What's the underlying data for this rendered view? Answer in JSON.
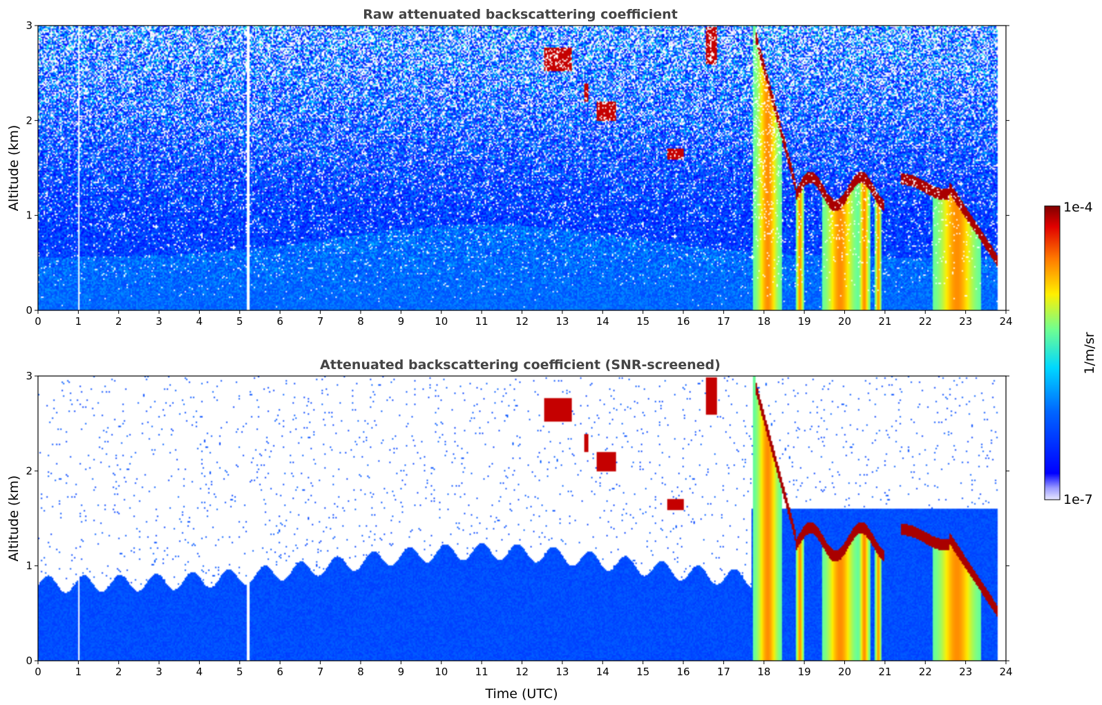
{
  "chart_data": [
    {
      "type": "heatmap",
      "title": "Raw attenuated backscattering coefficient",
      "xlabel": "",
      "ylabel": "Altitude (km)",
      "xlim": [
        0,
        24
      ],
      "ylim": [
        0,
        3
      ],
      "xticks": [
        "0",
        "1",
        "2",
        "3",
        "4",
        "5",
        "6",
        "7",
        "8",
        "9",
        "10",
        "11",
        "12",
        "13",
        "14",
        "15",
        "16",
        "17",
        "18",
        "19",
        "20",
        "21",
        "22",
        "23",
        "24"
      ],
      "yticks": [
        "0",
        "1",
        "2",
        "3"
      ],
      "colormap": "jet",
      "screened": false
    },
    {
      "type": "heatmap",
      "title": "Attenuated backscattering coefficient (SNR-screened)",
      "xlabel": "Time (UTC)",
      "ylabel": "Altitude (km)",
      "xlim": [
        0,
        24
      ],
      "ylim": [
        0,
        3
      ],
      "xticks": [
        "0",
        "1",
        "2",
        "3",
        "4",
        "5",
        "6",
        "7",
        "8",
        "9",
        "10",
        "11",
        "12",
        "13",
        "14",
        "15",
        "16",
        "17",
        "18",
        "19",
        "20",
        "21",
        "22",
        "23",
        "24"
      ],
      "yticks": [
        "0",
        "1",
        "2",
        "3"
      ],
      "colormap": "jet",
      "screened": true
    }
  ],
  "colorbar": {
    "label": "1/m/sr",
    "max_label": "1e-4",
    "min_label": "1e-7",
    "scale": "log"
  }
}
